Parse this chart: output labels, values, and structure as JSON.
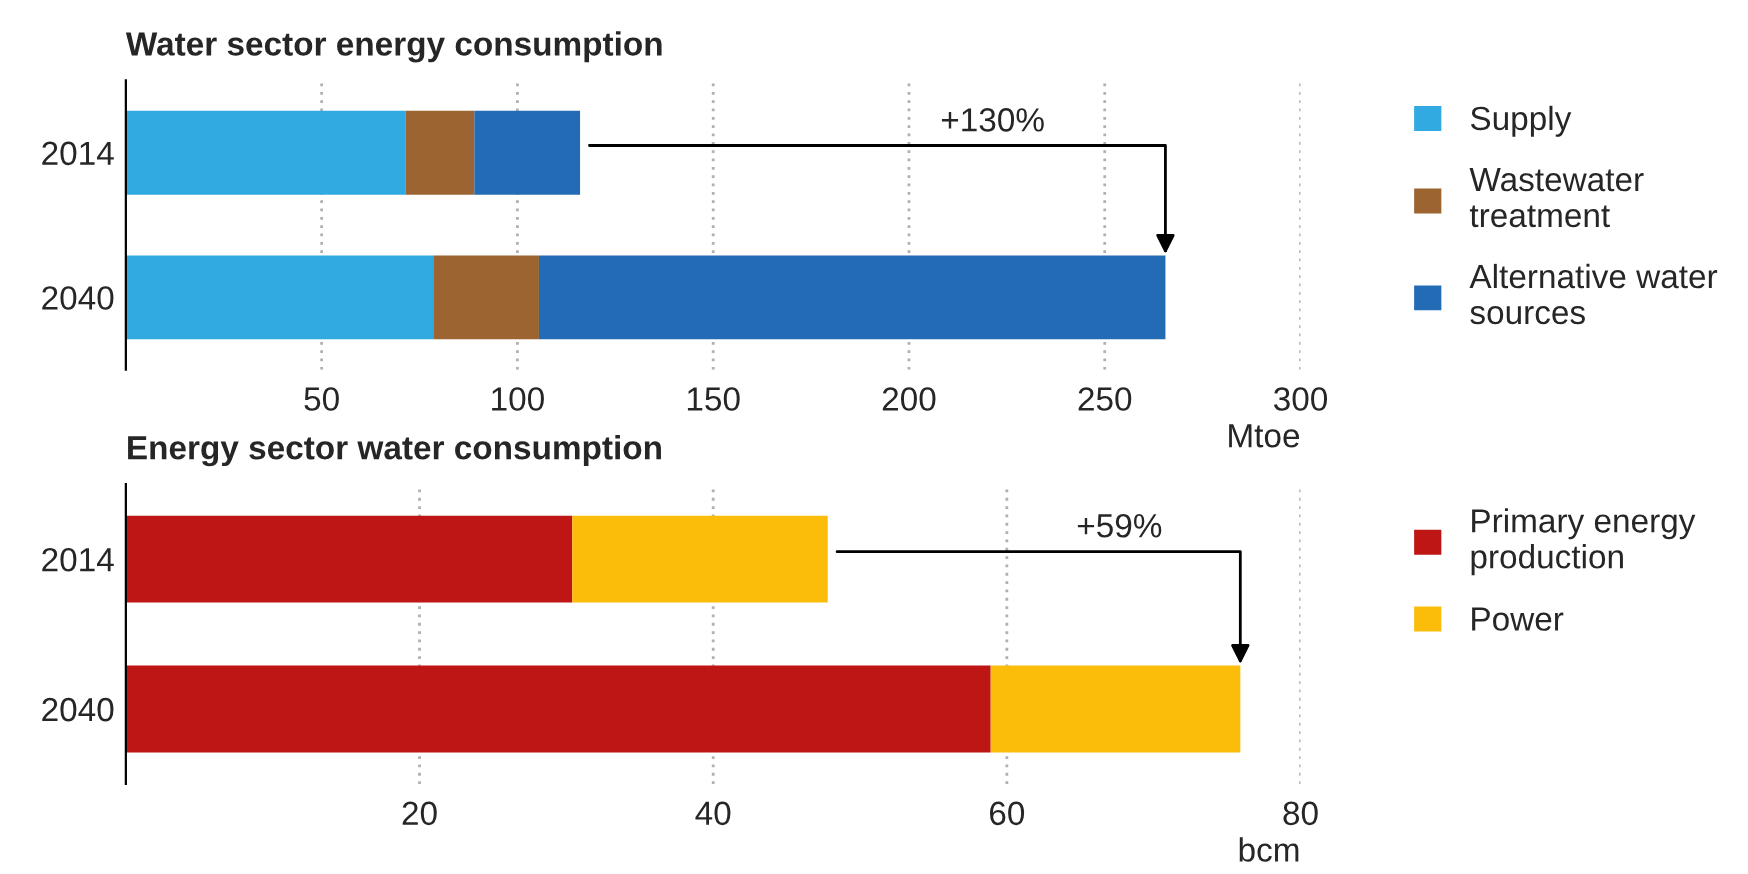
{
  "chart_data": [
    {
      "type": "bar",
      "orientation": "horizontal",
      "stacked": true,
      "title": "Water sector energy consumption",
      "xlabel": "Mtoe",
      "categories": [
        "2014",
        "2040"
      ],
      "series": [
        {
          "name": "Supply",
          "color": "#31a9e1",
          "values": [
            71.5,
            78.5
          ]
        },
        {
          "name": "Wastewater treatment",
          "color": "#9b6431",
          "values": [
            17.5,
            27
          ]
        },
        {
          "name": "Alternative water sources",
          "color": "#246bb5",
          "values": [
            27,
            160
          ]
        }
      ],
      "xlim": [
        0,
        300
      ],
      "xticks": [
        50,
        100,
        150,
        200,
        250,
        300
      ],
      "grid": "x",
      "legend": "right",
      "annotations": [
        "+130%"
      ]
    },
    {
      "type": "bar",
      "orientation": "horizontal",
      "stacked": true,
      "title": "Energy sector water consumption",
      "xlabel": "bcm",
      "categories": [
        "2014",
        "2040"
      ],
      "series": [
        {
          "name": "Primary energy production",
          "color": "#be1515",
          "values": [
            30.4,
            58.9
          ]
        },
        {
          "name": "Power",
          "color": "#fbbc0a",
          "values": [
            17.4,
            17
          ]
        }
      ],
      "xlim": [
        0,
        80
      ],
      "xticks": [
        20,
        40,
        60,
        80
      ],
      "grid": "x",
      "legend": "right",
      "annotations": [
        "+59%"
      ]
    }
  ]
}
